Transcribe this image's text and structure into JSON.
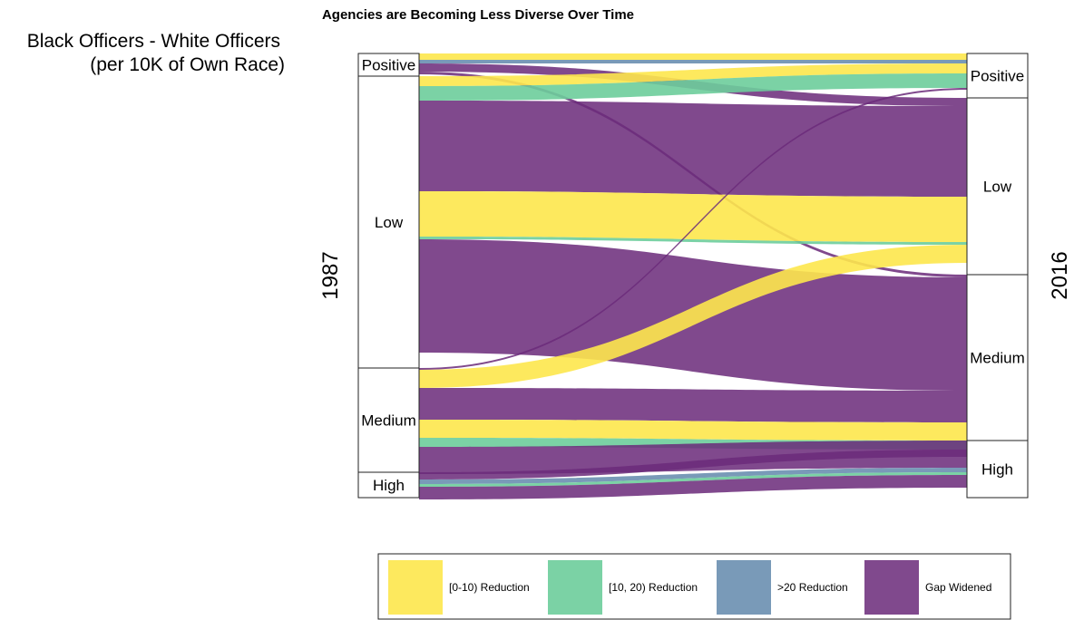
{
  "chart_data": {
    "type": "alluvial",
    "title": "Agencies are Becoming Less Diverse Over Time",
    "ylabel_line1": "Black Officers - White Officers",
    "ylabel_line2": "(per 10K of Own Race)",
    "axes": [
      "1987",
      "2016"
    ],
    "categories": [
      "Positive",
      "Low",
      "Medium",
      "High"
    ],
    "left_strata": [
      {
        "name": "Positive",
        "value": 25
      },
      {
        "name": "Low",
        "value": 322
      },
      {
        "name": "Medium",
        "value": 115
      },
      {
        "name": "High",
        "value": 28
      }
    ],
    "right_strata": [
      {
        "name": "Positive",
        "value": 49
      },
      {
        "name": "Low",
        "value": 195
      },
      {
        "name": "Medium",
        "value": 183
      },
      {
        "name": "High",
        "value": 63
      }
    ],
    "legend": [
      {
        "key": "r0",
        "label": "[0-10) Reduction",
        "color": "#FDE74C"
      },
      {
        "key": "r10",
        "label": "[10, 20) Reduction",
        "color": "#6DCD9B"
      },
      {
        "key": "r20",
        "label": ">20 Reduction",
        "color": "#6A8FB0"
      },
      {
        "key": "gap",
        "label": "Gap Widened",
        "color": "#6B2B7A"
      }
    ],
    "flows": [
      {
        "from": "Positive",
        "to": "Positive",
        "group": "r0",
        "value": 7
      },
      {
        "from": "Positive",
        "to": "Positive",
        "group": "r20",
        "value": 4
      },
      {
        "from": "Positive",
        "to": "Low",
        "group": "gap",
        "value": 9
      },
      {
        "from": "Positive",
        "to": "Medium",
        "group": "gap",
        "value": 3
      },
      {
        "from": "Low",
        "to": "Positive",
        "group": "r0",
        "value": 11
      },
      {
        "from": "Low",
        "to": "Positive",
        "group": "r10",
        "value": 16
      },
      {
        "from": "Low",
        "to": "Low",
        "group": "gap",
        "value": 100
      },
      {
        "from": "Low",
        "to": "Low",
        "group": "r0",
        "value": 50
      },
      {
        "from": "Low",
        "to": "Low",
        "group": "r10",
        "value": 3
      },
      {
        "from": "Low",
        "to": "Medium",
        "group": "gap",
        "value": 125
      },
      {
        "from": "Medium",
        "to": "Positive",
        "group": "gap",
        "value": 2
      },
      {
        "from": "Medium",
        "to": "Low",
        "group": "r0",
        "value": 20
      },
      {
        "from": "Medium",
        "to": "Medium",
        "group": "gap",
        "value": 35
      },
      {
        "from": "Medium",
        "to": "Medium",
        "group": "r0",
        "value": 20
      },
      {
        "from": "Medium",
        "to": "Medium",
        "group": "r10",
        "value": 10
      },
      {
        "from": "Medium",
        "to": "High",
        "group": "gap",
        "value": 30
      },
      {
        "from": "High",
        "to": "High",
        "group": "r20",
        "value": 5
      },
      {
        "from": "High",
        "to": "High",
        "group": "r10",
        "value": 3
      },
      {
        "from": "High",
        "to": "Medium",
        "group": "gap",
        "value": 8
      },
      {
        "from": "High",
        "to": "High",
        "group": "gap",
        "value": 14
      }
    ],
    "legend_position": "bottom"
  }
}
